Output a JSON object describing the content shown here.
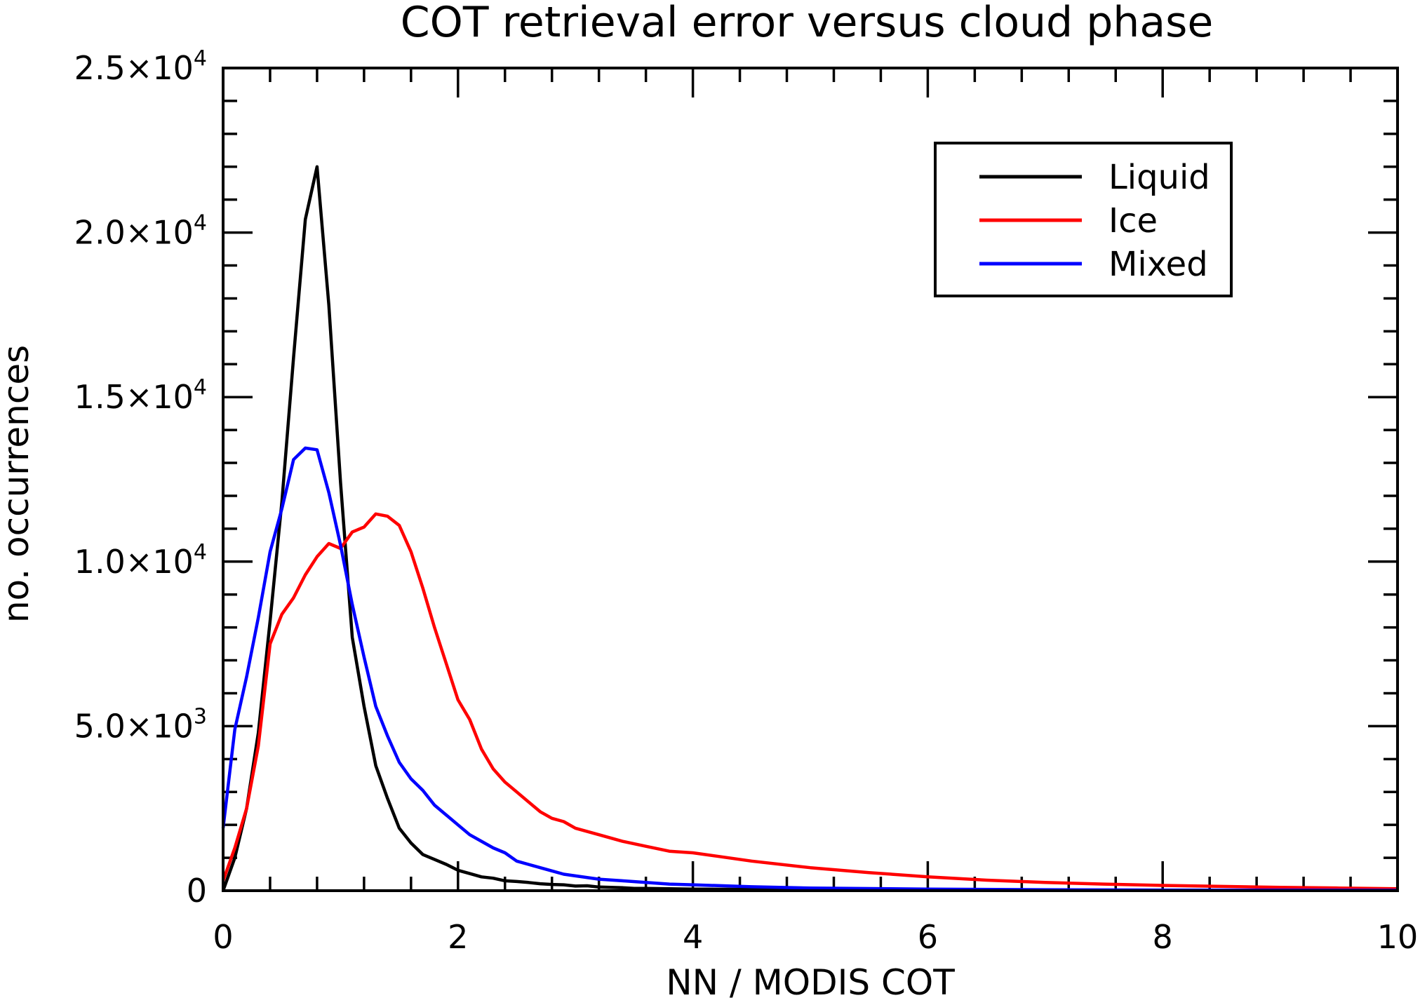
{
  "chart_data": {
    "type": "line",
    "title": "COT retrieval error versus cloud phase",
    "xlabel": "NN / MODIS COT",
    "ylabel": "no. occurrences",
    "xlim": [
      0,
      10
    ],
    "ylim": [
      0,
      25000
    ],
    "x_ticks": [
      0,
      2,
      4,
      6,
      8,
      10
    ],
    "x_tick_labels": [
      "0",
      "2",
      "4",
      "6",
      "8",
      "10"
    ],
    "y_ticks": [
      0,
      5000,
      10000,
      15000,
      20000,
      25000
    ],
    "y_tick_labels": [
      {
        "mantissa": "0",
        "exp": ""
      },
      {
        "mantissa": "5.0×10",
        "exp": "3"
      },
      {
        "mantissa": "1.0×10",
        "exp": "4"
      },
      {
        "mantissa": "1.5×10",
        "exp": "4"
      },
      {
        "mantissa": "2.0×10",
        "exp": "4"
      },
      {
        "mantissa": "2.5×10",
        "exp": "4"
      }
    ],
    "grid": false,
    "legend_position": "top-right",
    "series": [
      {
        "name": "Liquid",
        "color": "#000000",
        "x": [
          0,
          0.1,
          0.2,
          0.3,
          0.4,
          0.5,
          0.6,
          0.7,
          0.8,
          0.9,
          1.0,
          1.1,
          1.2,
          1.3,
          1.4,
          1.5,
          1.6,
          1.7,
          1.8,
          1.9,
          2.0,
          2.1,
          2.2,
          2.3,
          2.4,
          2.5,
          2.6,
          2.7,
          2.8,
          2.9,
          3.0,
          3.1,
          3.2,
          3.3,
          3.4,
          3.5,
          3.6,
          3.8,
          4.0,
          4.5,
          5.0,
          6.0,
          7.0,
          8.0,
          9.0,
          10.0
        ],
        "y": [
          0,
          1000,
          2500,
          4800,
          8200,
          11800,
          16200,
          20400,
          22000,
          17800,
          12400,
          7700,
          5600,
          3800,
          2800,
          1900,
          1450,
          1100,
          950,
          800,
          620,
          520,
          420,
          380,
          300,
          280,
          250,
          210,
          190,
          180,
          140,
          150,
          110,
          100,
          90,
          70,
          70,
          60,
          50,
          40,
          30,
          20,
          15,
          10,
          8,
          5
        ]
      },
      {
        "name": "Ice",
        "color": "#ff0000",
        "x": [
          0,
          0.1,
          0.2,
          0.3,
          0.4,
          0.5,
          0.6,
          0.7,
          0.8,
          0.9,
          1.0,
          1.1,
          1.2,
          1.3,
          1.4,
          1.5,
          1.6,
          1.7,
          1.8,
          1.9,
          2.0,
          2.1,
          2.2,
          2.3,
          2.4,
          2.5,
          2.6,
          2.7,
          2.8,
          2.9,
          3.0,
          3.2,
          3.4,
          3.6,
          3.8,
          4.0,
          4.2,
          4.5,
          5.0,
          5.5,
          6.0,
          6.5,
          7.0,
          7.5,
          8.0,
          8.5,
          9.0,
          9.5,
          10.0
        ],
        "y": [
          300,
          1300,
          2500,
          4400,
          7500,
          8400,
          8900,
          9600,
          10150,
          10550,
          10400,
          10900,
          11050,
          11450,
          11380,
          11100,
          10300,
          9200,
          8000,
          6900,
          5800,
          5200,
          4300,
          3700,
          3300,
          3000,
          2700,
          2400,
          2200,
          2100,
          1900,
          1700,
          1500,
          1350,
          1200,
          1150,
          1050,
          900,
          700,
          550,
          420,
          320,
          250,
          200,
          160,
          130,
          100,
          80,
          60
        ]
      },
      {
        "name": "Mixed",
        "color": "#0000ff",
        "x": [
          0,
          0.1,
          0.2,
          0.3,
          0.4,
          0.5,
          0.6,
          0.7,
          0.8,
          0.9,
          1.0,
          1.1,
          1.2,
          1.3,
          1.4,
          1.5,
          1.6,
          1.7,
          1.8,
          1.9,
          2.0,
          2.1,
          2.2,
          2.3,
          2.4,
          2.5,
          2.6,
          2.7,
          2.8,
          2.9,
          3.0,
          3.2,
          3.4,
          3.6,
          3.8,
          4.0,
          4.5,
          5.0,
          6.0,
          7.0,
          8.0,
          9.0,
          10.0
        ],
        "y": [
          1900,
          4900,
          6500,
          8300,
          10300,
          11600,
          13100,
          13450,
          13400,
          12100,
          10500,
          8700,
          7100,
          5600,
          4700,
          3900,
          3400,
          3050,
          2600,
          2300,
          2000,
          1700,
          1500,
          1300,
          1150,
          900,
          800,
          700,
          600,
          500,
          450,
          350,
          300,
          250,
          200,
          180,
          120,
          80,
          50,
          30,
          20,
          15,
          10
        ]
      }
    ]
  }
}
